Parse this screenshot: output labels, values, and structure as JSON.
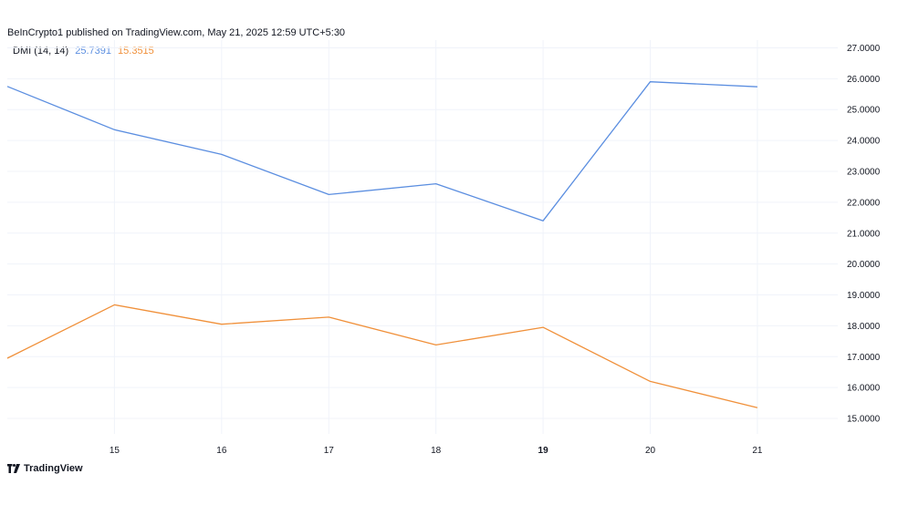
{
  "header": {
    "published": "BeInCrypto1 published on TradingView.com, May 21, 2025 12:59 UTC+5:30"
  },
  "legend": {
    "indicator": "DMI (14, 14)",
    "plus_value": "25.7391",
    "minus_value": "15.3515"
  },
  "footer": {
    "brand": "TradingView"
  },
  "colors": {
    "plus": "#5b8ee0",
    "minus": "#f0903a",
    "grid": "#f0f3fa",
    "text": "#131722"
  },
  "chart_data": {
    "type": "line",
    "x": [
      14,
      15,
      16,
      17,
      18,
      19,
      20,
      21
    ],
    "x_tick_labels": [
      "15",
      "16",
      "17",
      "18",
      "19",
      "20",
      "21"
    ],
    "x_tick_values": [
      15,
      16,
      17,
      18,
      19,
      20,
      21
    ],
    "x_bold_tick": "19",
    "xlim": [
      14,
      21.75
    ],
    "ylim": [
      14.5,
      27.25
    ],
    "y_tick_labels": [
      "27.0000",
      "26.0000",
      "25.0000",
      "24.0000",
      "23.0000",
      "22.0000",
      "21.0000",
      "20.0000",
      "19.0000",
      "18.0000",
      "17.0000",
      "16.0000",
      "15.0000"
    ],
    "y_tick_values": [
      27,
      26,
      25,
      24,
      23,
      22,
      21,
      20,
      19,
      18,
      17,
      16,
      15
    ],
    "grid": true,
    "series": [
      {
        "key": "plus",
        "values": [
          25.75,
          24.35,
          23.55,
          22.25,
          22.6,
          21.4,
          25.9,
          25.74
        ]
      },
      {
        "key": "minus",
        "values": [
          16.95,
          18.68,
          18.05,
          18.28,
          17.38,
          17.95,
          16.2,
          15.35
        ]
      }
    ]
  }
}
